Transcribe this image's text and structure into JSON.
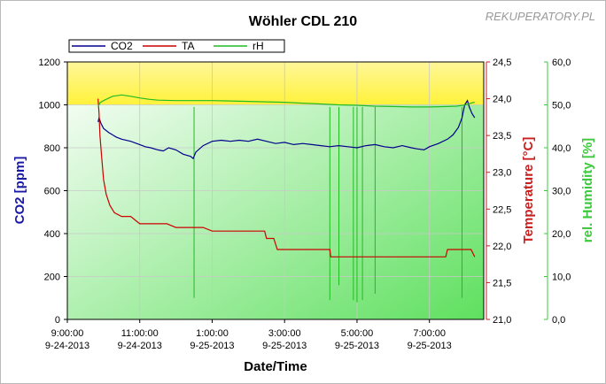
{
  "chart_data": {
    "type": "line",
    "title": "Wöhler CDL 210",
    "watermark": "REKUPERATORY.PL",
    "xlabel": "Date/Time",
    "x_ticks": [
      {
        "time": "9:00:00",
        "date": "9-24-2013"
      },
      {
        "time": "11:00:00",
        "date": "9-24-2013"
      },
      {
        "time": "1:00:00",
        "date": "9-25-2013"
      },
      {
        "time": "3:00:00",
        "date": "9-25-2013"
      },
      {
        "time": "5:00:00",
        "date": "9-25-2013"
      },
      {
        "time": "7:00:00",
        "date": "9-25-2013"
      }
    ],
    "x_range_hours": [
      9.0,
      32.0
    ],
    "axes": {
      "co2": {
        "label": "CO2 [ppm]",
        "range": [
          0,
          1200
        ],
        "ticks": [
          "0",
          "200",
          "400",
          "600",
          "800",
          "1000",
          "1200"
        ],
        "color": "#1a1aa6"
      },
      "temperature": {
        "label": "Temperature [°C]",
        "range": [
          21.0,
          24.5
        ],
        "ticks": [
          "21,0",
          "21,5",
          "22,0",
          "22,5",
          "23,0",
          "23,5",
          "24,0",
          "24,5"
        ],
        "color": "#c82020"
      },
      "humidity": {
        "label": "rel. Humidity [%]",
        "range": [
          0,
          60
        ],
        "ticks": [
          "0,0",
          "10,0",
          "20,0",
          "30,0",
          "40,0",
          "50,0",
          "60,0"
        ],
        "color": "#3cc83c"
      }
    },
    "threshold_co2": 1000,
    "grid": true,
    "legend_position": "top-left",
    "series": [
      {
        "name": "CO2",
        "axis": "co2",
        "color": "#00008b",
        "points": [
          [
            10.7,
            920
          ],
          [
            10.75,
            940
          ],
          [
            10.85,
            915
          ],
          [
            11.0,
            890
          ],
          [
            11.3,
            870
          ],
          [
            11.7,
            850
          ],
          [
            12.0,
            840
          ],
          [
            12.5,
            830
          ],
          [
            13.0,
            815
          ],
          [
            13.3,
            805
          ],
          [
            13.6,
            800
          ],
          [
            14.0,
            790
          ],
          [
            14.3,
            785
          ],
          [
            14.6,
            800
          ],
          [
            15.0,
            790
          ],
          [
            15.4,
            770
          ],
          [
            15.8,
            760
          ],
          [
            15.95,
            750
          ],
          [
            16.1,
            780
          ],
          [
            16.5,
            810
          ],
          [
            17.0,
            830
          ],
          [
            17.5,
            835
          ],
          [
            18.0,
            830
          ],
          [
            18.5,
            835
          ],
          [
            19.0,
            830
          ],
          [
            19.5,
            840
          ],
          [
            20.0,
            830
          ],
          [
            20.5,
            820
          ],
          [
            21.0,
            825
          ],
          [
            21.5,
            815
          ],
          [
            22.0,
            820
          ],
          [
            22.5,
            815
          ],
          [
            23.0,
            810
          ],
          [
            23.5,
            805
          ],
          [
            24.0,
            810
          ],
          [
            24.5,
            805
          ],
          [
            25.0,
            800
          ],
          [
            25.5,
            810
          ],
          [
            26.0,
            815
          ],
          [
            26.5,
            805
          ],
          [
            27.0,
            800
          ],
          [
            27.5,
            810
          ],
          [
            28.0,
            800
          ],
          [
            28.3,
            795
          ],
          [
            28.7,
            790
          ],
          [
            29.0,
            805
          ],
          [
            29.5,
            820
          ],
          [
            30.0,
            840
          ],
          [
            30.3,
            860
          ],
          [
            30.6,
            895
          ],
          [
            30.8,
            940
          ],
          [
            30.95,
            1000
          ],
          [
            31.1,
            1020
          ],
          [
            31.2,
            990
          ],
          [
            31.35,
            960
          ],
          [
            31.5,
            940
          ]
        ]
      },
      {
        "name": "TA",
        "axis": "temperature",
        "color": "#cc0000",
        "points": [
          [
            10.7,
            24.0
          ],
          [
            10.75,
            23.8
          ],
          [
            10.8,
            23.5
          ],
          [
            10.9,
            23.2
          ],
          [
            11.0,
            22.9
          ],
          [
            11.15,
            22.7
          ],
          [
            11.35,
            22.55
          ],
          [
            11.6,
            22.45
          ],
          [
            12.0,
            22.4
          ],
          [
            12.5,
            22.4
          ],
          [
            13.0,
            22.3
          ],
          [
            13.5,
            22.3
          ],
          [
            14.0,
            22.3
          ],
          [
            14.5,
            22.3
          ],
          [
            15.0,
            22.25
          ],
          [
            15.5,
            22.25
          ],
          [
            16.0,
            22.25
          ],
          [
            16.5,
            22.25
          ],
          [
            17.0,
            22.2
          ],
          [
            18.0,
            22.2
          ],
          [
            19.0,
            22.2
          ],
          [
            19.9,
            22.2
          ],
          [
            20.0,
            22.1
          ],
          [
            20.4,
            22.1
          ],
          [
            20.6,
            21.95
          ],
          [
            21.0,
            21.95
          ],
          [
            22.0,
            21.95
          ],
          [
            23.0,
            21.95
          ],
          [
            23.5,
            21.95
          ],
          [
            23.55,
            21.85
          ],
          [
            24.0,
            21.85
          ],
          [
            25.0,
            21.85
          ],
          [
            26.0,
            21.85
          ],
          [
            26.5,
            21.85
          ],
          [
            27.0,
            21.85
          ],
          [
            27.5,
            21.85
          ],
          [
            28.0,
            21.85
          ],
          [
            29.0,
            21.85
          ],
          [
            29.9,
            21.85
          ],
          [
            30.0,
            21.95
          ],
          [
            30.5,
            21.95
          ],
          [
            31.0,
            21.95
          ],
          [
            31.3,
            21.95
          ],
          [
            31.5,
            21.85
          ]
        ]
      },
      {
        "name": "rH",
        "axis": "humidity",
        "color": "#22bb22",
        "points": [
          [
            10.7,
            49.5
          ],
          [
            10.8,
            50.5
          ],
          [
            11.0,
            51.0
          ],
          [
            11.5,
            52.0
          ],
          [
            12.0,
            52.3
          ],
          [
            12.5,
            52.0
          ],
          [
            13.0,
            51.6
          ],
          [
            13.5,
            51.3
          ],
          [
            14.0,
            51.1
          ],
          [
            15.0,
            51.0
          ],
          [
            16.0,
            51.0
          ],
          [
            17.0,
            51.0
          ],
          [
            18.0,
            50.9
          ],
          [
            19.0,
            50.8
          ],
          [
            20.0,
            50.7
          ],
          [
            21.0,
            50.6
          ],
          [
            22.0,
            50.4
          ],
          [
            23.0,
            50.2
          ],
          [
            24.0,
            50.0
          ],
          [
            25.0,
            49.9
          ],
          [
            26.0,
            49.7
          ],
          [
            27.0,
            49.6
          ],
          [
            28.0,
            49.5
          ],
          [
            29.0,
            49.5
          ],
          [
            30.0,
            49.6
          ],
          [
            30.5,
            49.7
          ],
          [
            31.0,
            50.0
          ],
          [
            31.2,
            50.3
          ],
          [
            31.5,
            50.6
          ]
        ]
      }
    ]
  }
}
